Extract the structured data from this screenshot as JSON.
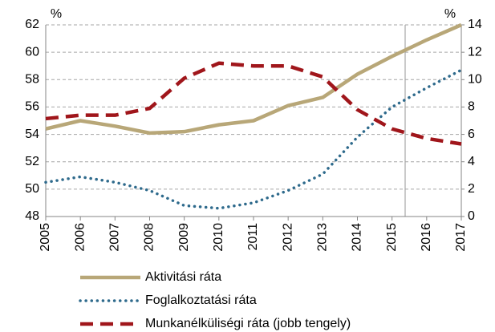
{
  "chart_data": {
    "type": "line",
    "y_unit_left": "%",
    "y_unit_right": "%",
    "categories": [
      "2005",
      "2006",
      "2007",
      "2008",
      "2009",
      "2010",
      "2011",
      "2012",
      "2013",
      "2014",
      "2015",
      "2016",
      "2017"
    ],
    "series": [
      {
        "name": "Aktivitási ráta",
        "color": "#b8a778",
        "style": "solid",
        "values": [
          54.4,
          55.0,
          54.6,
          54.1,
          54.2,
          54.7,
          55.0,
          56.1,
          56.7,
          58.4,
          59.7,
          60.9,
          62.0
        ]
      },
      {
        "name": "Foglalkoztatási ráta",
        "color": "#2e6a8c",
        "style": "dotted",
        "values": [
          50.5,
          50.9,
          50.5,
          49.9,
          48.8,
          48.6,
          49.0,
          49.9,
          51.1,
          53.8,
          56.0,
          57.4,
          58.7
        ]
      },
      {
        "name": "Munkanélküliségi ráta (jobb tengely)",
        "color": "#a0161b",
        "style": "dashed",
        "axis": "y2",
        "values": [
          7.15,
          7.4,
          7.4,
          7.9,
          10.1,
          11.2,
          11.0,
          11.0,
          10.2,
          7.8,
          6.4,
          5.7,
          5.3
        ]
      }
    ],
    "ylim": [
      48,
      62
    ],
    "yticks": [
      48,
      50,
      52,
      54,
      56,
      58,
      60,
      62
    ],
    "y2lim": [
      0,
      14
    ],
    "y2ticks": [
      0,
      2,
      4,
      6,
      8,
      10,
      12,
      14
    ],
    "grid": true
  }
}
